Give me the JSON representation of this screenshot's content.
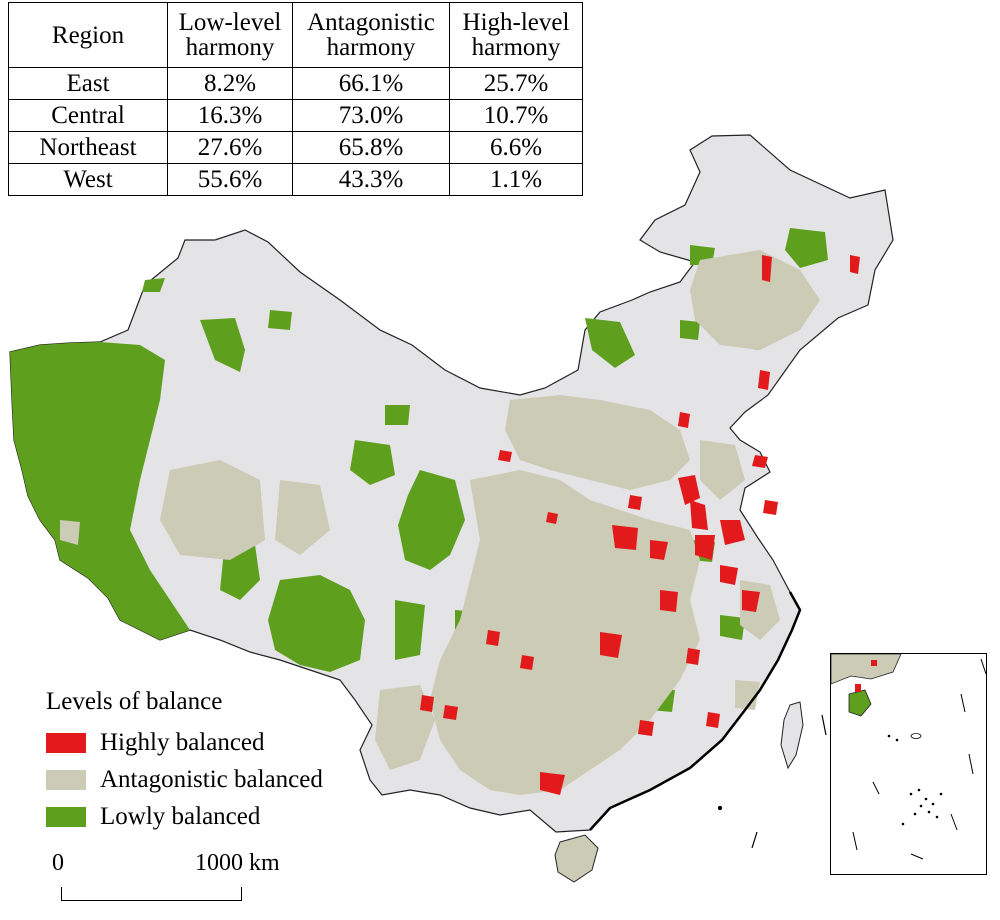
{
  "table": {
    "headers": {
      "region": "Region",
      "low": [
        "Low-level",
        "harmony"
      ],
      "antagonistic": [
        "Antagonistic",
        "harmony"
      ],
      "high": [
        "High-level",
        "harmony"
      ]
    },
    "rows": [
      {
        "region": "East",
        "low": "8.2%",
        "antagonistic": "66.1%",
        "high": "25.7%"
      },
      {
        "region": "Central",
        "low": "16.3%",
        "antagonistic": "73.0%",
        "high": "10.7%"
      },
      {
        "region": "Northeast",
        "low": "27.6%",
        "antagonistic": "65.8%",
        "high": "6.6%"
      },
      {
        "region": "West",
        "low": "55.6%",
        "antagonistic": "43.3%",
        "high": "1.1%"
      }
    ]
  },
  "legend": {
    "title": "Levels of balance",
    "items": [
      {
        "label": "Highly balanced",
        "color": "#e31a1c"
      },
      {
        "label": "Antagonistic balanced",
        "color": "#cbcbb6"
      },
      {
        "label": "Lowly balanced",
        "color": "#5e9f1e"
      }
    ]
  },
  "map_colors": {
    "base": "#e4e3e6",
    "outline": "#222222"
  },
  "scale_bar": {
    "start_label": "0",
    "end_label": "1000 km"
  }
}
